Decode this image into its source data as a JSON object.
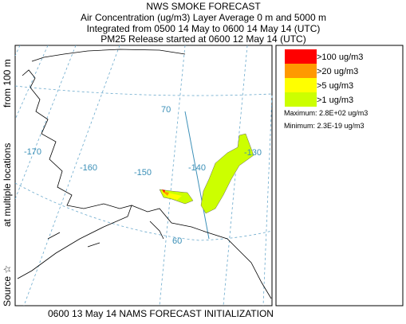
{
  "header": {
    "title": "NWS SMOKE FORECAST",
    "lines": [
      "Air Concentration (ug/m3) Layer Average    0 m and  5000 m",
      "Integrated from 0500 14 May to 0600 14 May 14 (UTC)",
      "PM25 Release started at 0600 12 May 14 (UTC)"
    ]
  },
  "side_label": [
    "Source ☆",
    "at multiple locations",
    "from   100 m"
  ],
  "footer": "0600 13 May 14 NAMS FORECAST INITIALIZATION",
  "map": {
    "labels": [
      "-170",
      "-160",
      "-150",
      "-140",
      "-130",
      "70",
      "60"
    ]
  },
  "legend": {
    "items": [
      {
        "label": ">100 ug/m3",
        "color": "#ff0000"
      },
      {
        "label": ">20 ug/m3",
        "color": "#ff9900"
      },
      {
        "label": ">5 ug/m3",
        "color": "#ffff00"
      },
      {
        "label": ">1 ug/m3",
        "color": "#ccff00"
      }
    ],
    "maximum": "Maximum: 2.8E+02 ug/m3",
    "minimum": "Minimum: 2.3E-19 ug/m3"
  }
}
